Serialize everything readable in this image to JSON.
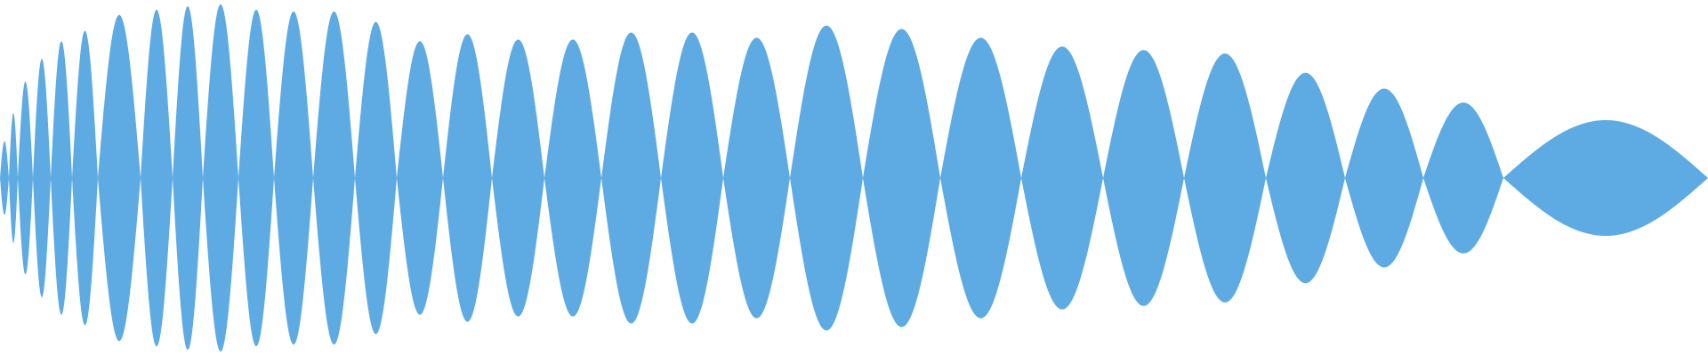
{
  "waveform": {
    "fill_color": "#5dabe2",
    "background_color": "#ffffff",
    "lobes": [
      {
        "peak": 0.21
      },
      {
        "peak": 0.37
      },
      {
        "peak": 0.55
      },
      {
        "peak": 0.68
      },
      {
        "peak": 0.78
      },
      {
        "peak": 0.84
      },
      {
        "peak": 0.93
      },
      {
        "peak": 0.96
      },
      {
        "peak": 0.98
      },
      {
        "peak": 0.99
      },
      {
        "peak": 0.96
      },
      {
        "peak": 0.95
      },
      {
        "peak": 0.95
      },
      {
        "peak": 0.89
      },
      {
        "peak": 0.78
      },
      {
        "peak": 0.82
      },
      {
        "peak": 0.79
      },
      {
        "peak": 0.79
      },
      {
        "peak": 0.83
      },
      {
        "peak": 0.83
      },
      {
        "peak": 0.8
      },
      {
        "peak": 0.87
      },
      {
        "peak": 0.85
      },
      {
        "peak": 0.8
      },
      {
        "peak": 0.75
      },
      {
        "peak": 0.73
      },
      {
        "peak": 0.71
      },
      {
        "peak": 0.6
      },
      {
        "peak": 0.51
      },
      {
        "peak": 0.43
      },
      {
        "peak": 0.33
      }
    ]
  }
}
